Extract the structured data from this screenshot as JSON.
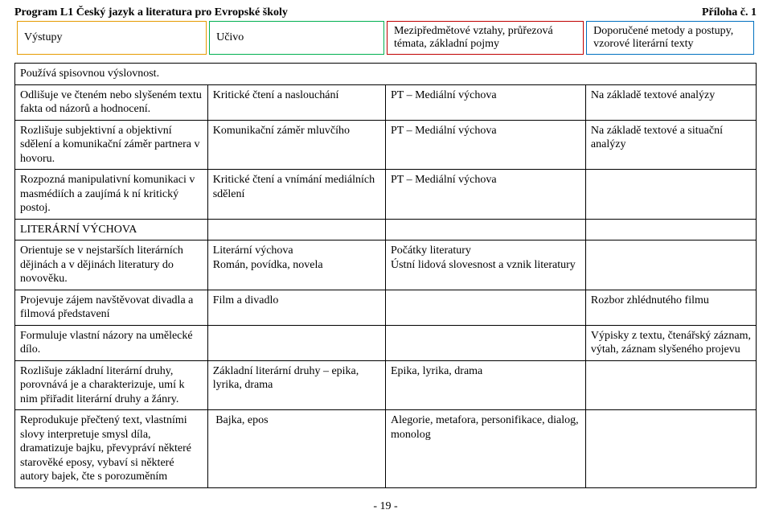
{
  "header": {
    "program": "Program L1 Český jazyk a literatura pro Evropské školy",
    "priloha": "Příloha č. 1",
    "cols": [
      "Výstupy",
      "Učivo",
      "Mezipředmětové vztahy, průřezová témata, základní pojmy",
      "Doporučené metody a postupy, vzorové literární texty"
    ],
    "col_colors": [
      "#e69b00",
      "#00b050",
      "#c00000",
      "#0070c0"
    ]
  },
  "column_widths_pct": [
    26,
    24,
    27,
    23
  ],
  "spoken_row": "Používá spisovnou výslovnost.",
  "rows": [
    {
      "c": [
        "Odlišuje ve čteném nebo slyšeném textu fakta od názorů a hodnocení.",
        "Kritické čtení a naslouchání",
        "PT – Mediální výchova",
        "Na základě textové analýzy"
      ]
    },
    {
      "c": [
        "Rozlišuje subjektivní a objektivní sdělení a komunikační záměr partnera v hovoru.",
        "Komunikační záměr mluvčího",
        "PT – Mediální výchova",
        "Na základě textové a situační analýzy"
      ]
    },
    {
      "c": [
        "Rozpozná manipulativní komunikaci v masmédiích a zaujímá k ní kritický postoj.",
        "Kritické čtení a vnímání mediálních sdělení",
        "PT – Mediální výchova",
        ""
      ]
    },
    {
      "c": [
        "LITERÁRNÍ VÝCHOVA",
        "",
        "",
        ""
      ]
    },
    {
      "c": [
        "Orientuje se v nejstarších literárních dějinách a v dějinách literatury do novověku.",
        "Literární výchova\nRomán, povídka, novela",
        "Počátky literatury\nÚstní lidová slovesnost a vznik literatury",
        ""
      ]
    },
    {
      "c": [
        "Projevuje zájem navštěvovat divadla a filmová představení",
        "Film a divadlo",
        "",
        "Rozbor zhlédnutého filmu"
      ]
    },
    {
      "c": [
        "Formuluje vlastní názory na umělecké dílo.",
        "",
        "",
        "Výpisky z textu, čtenářský záznam, výtah, záznam slyšeného projevu"
      ]
    },
    {
      "c": [
        "Rozlišuje základní literární druhy, porovnává je a charakterizuje, umí k nim přiřadit literární druhy a žánry.",
        "Základní literární druhy – epika, lyrika, drama",
        "Epika, lyrika, drama",
        ""
      ]
    },
    {
      "c": [
        "Reprodukuje přečtený text, vlastními slovy interpretuje smysl díla, dramatizuje bajku, převypráví některé starověké eposy, vybaví si některé autory bajek, čte s porozuměním",
        " Bajka, epos",
        "Alegorie, metafora, personifikace, dialog, monolog",
        ""
      ]
    }
  ],
  "page": "- 19 -"
}
